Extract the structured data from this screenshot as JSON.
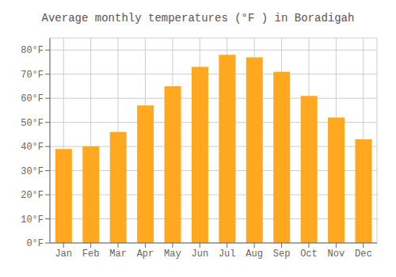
{
  "chart_data": {
    "type": "bar",
    "title": "Average monthly temperatures (°F ) in Boradigah",
    "categories": [
      "Jan",
      "Feb",
      "Mar",
      "Apr",
      "May",
      "Jun",
      "Jul",
      "Aug",
      "Sep",
      "Oct",
      "Nov",
      "Dec"
    ],
    "values": [
      39,
      40,
      46,
      57,
      65,
      73,
      78,
      77,
      71,
      61,
      52,
      43
    ],
    "color": "#FFA820",
    "ylim": [
      0,
      85
    ],
    "yticks": [
      {
        "value": 0,
        "label": "0°F"
      },
      {
        "value": 10,
        "label": "10°F"
      },
      {
        "value": 20,
        "label": "20°F"
      },
      {
        "value": 30,
        "label": "30°F"
      },
      {
        "value": 40,
        "label": "40°F"
      },
      {
        "value": 50,
        "label": "50°F"
      },
      {
        "value": 60,
        "label": "60°F"
      },
      {
        "value": 70,
        "label": "70°F"
      },
      {
        "value": 80,
        "label": "80°F"
      }
    ],
    "grid": true
  }
}
